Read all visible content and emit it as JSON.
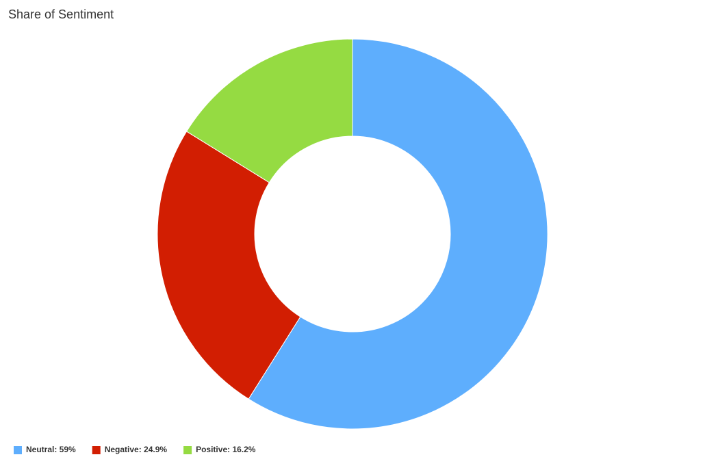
{
  "chart_data": {
    "type": "donut",
    "title": "Share of Sentiment",
    "values": [
      59,
      24.9,
      16.2
    ],
    "value_labels": [
      "Neutral: 59%",
      "Negative: 24.9%",
      "Positive: 16.2%"
    ],
    "colors": [
      "#5eaefd",
      "#d21e02",
      "#95db42"
    ],
    "legend": "bottom-left"
  }
}
